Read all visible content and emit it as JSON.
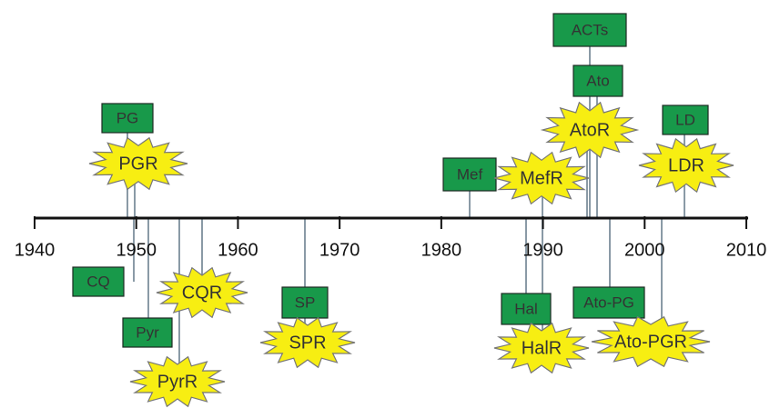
{
  "axis": {
    "ticks": [
      1940,
      1950,
      1960,
      1970,
      1980,
      1990,
      2000,
      2010
    ]
  },
  "nodes": [
    {
      "label": "PG"
    },
    {
      "label": "PGR"
    },
    {
      "label": "CQ"
    },
    {
      "label": "Pyr"
    },
    {
      "label": "PyrR"
    },
    {
      "label": "CQR"
    },
    {
      "label": "SP"
    },
    {
      "label": "SPR"
    },
    {
      "label": "Mef"
    },
    {
      "label": "MefR"
    },
    {
      "label": "Hal"
    },
    {
      "label": "HalR"
    },
    {
      "label": "ACTs"
    },
    {
      "label": "Ato"
    },
    {
      "label": "AtoR"
    },
    {
      "label": "LD"
    },
    {
      "label": "LDR"
    },
    {
      "label": "Ato-PG"
    },
    {
      "label": "Ato-PGR"
    }
  ]
}
